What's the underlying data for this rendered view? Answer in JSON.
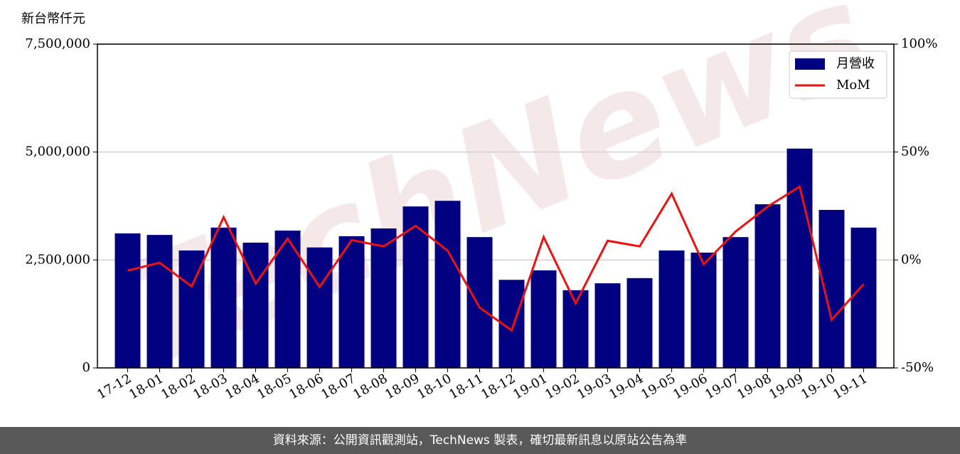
{
  "chart_data": {
    "type": "bar-line",
    "ylabel": "新台幣仟元",
    "watermark": "TechNews",
    "categories": [
      "17-12",
      "18-01",
      "18-02",
      "18-03",
      "18-04",
      "18-05",
      "18-06",
      "18-07",
      "18-08",
      "18-09",
      "18-10",
      "18-11",
      "18-12",
      "19-01",
      "19-02",
      "19-03",
      "19-04",
      "19-05",
      "19-06",
      "19-07",
      "19-08",
      "19-09",
      "19-10",
      "19-11"
    ],
    "series": [
      {
        "name": "月營收",
        "type": "bar",
        "color": "#000080",
        "values": [
          3115000,
          3080000,
          2720000,
          3250000,
          2900000,
          3180000,
          2790000,
          3050000,
          3230000,
          3740000,
          3870000,
          3030000,
          2040000,
          2260000,
          1800000,
          1960000,
          2080000,
          2720000,
          2670000,
          3030000,
          3790000,
          5080000,
          3660000,
          3250000
        ]
      },
      {
        "name": "MoM",
        "type": "line",
        "axis": "y2",
        "color": "#ee1111",
        "values": [
          -4.9,
          -1.3,
          -12.2,
          19.8,
          -10.9,
          9.9,
          -12.5,
          9.2,
          6.3,
          15.8,
          4.3,
          -22.1,
          -32.6,
          10.6,
          -20.1,
          8.9,
          6.3,
          30.7,
          -2.0,
          13.2,
          24.7,
          34.0,
          -27.7,
          -11.2
        ]
      }
    ],
    "ylim": [
      0,
      7500000
    ],
    "yticks": [
      0,
      {
        "value": 2500000,
        "label": "2,500,000"
      },
      {
        "value": 5000000,
        "label": "5,000,000"
      },
      {
        "value": 7500000,
        "label": "7,500,000"
      }
    ],
    "y2lim": [
      -50,
      100
    ],
    "y2ticks": [
      {
        "value": -50,
        "label": "-50%"
      },
      {
        "value": 0,
        "label": "0%"
      },
      {
        "value": 50,
        "label": "50%"
      },
      {
        "value": 100,
        "label": "100%"
      }
    ],
    "grid": true,
    "legend": "upper right"
  },
  "footer": "資料來源：公開資訊觀測站，TechNews 製表，確切最新訊息以原站公告為準"
}
